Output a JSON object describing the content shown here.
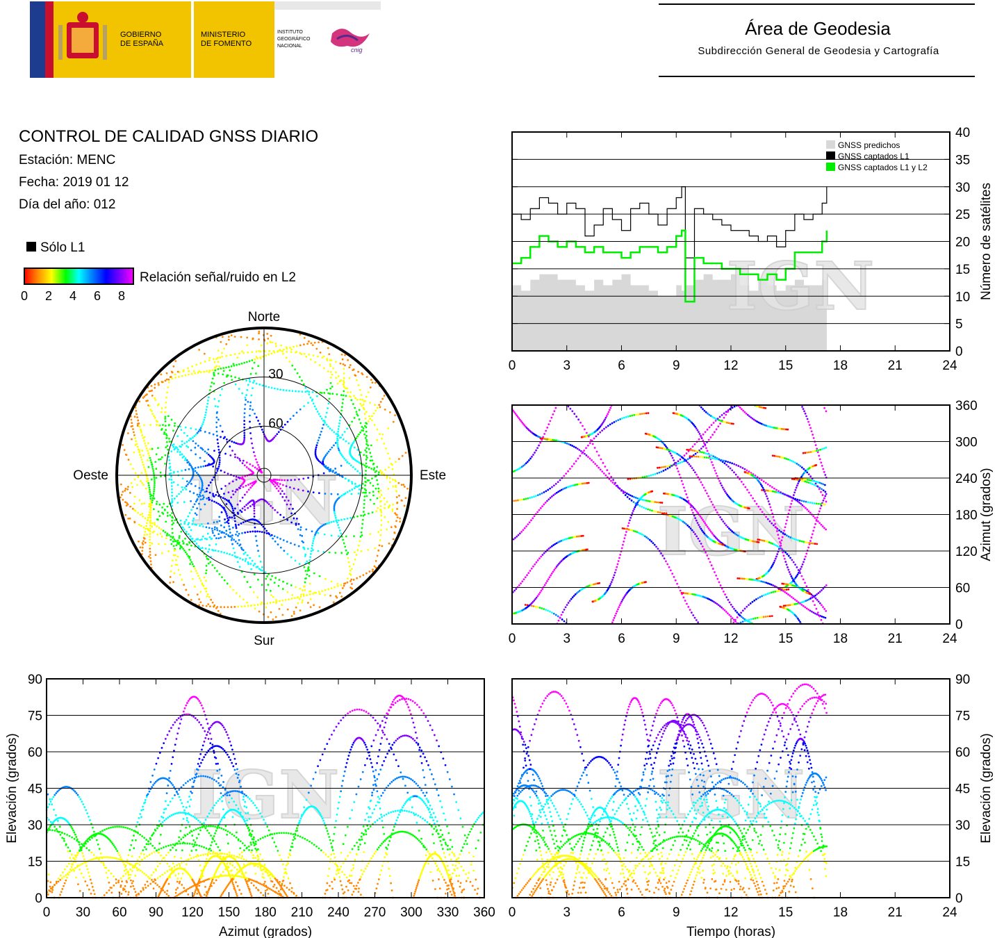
{
  "header": {
    "gov_line1": "GOBIERNO",
    "gov_line2": "DE ESPAÑA",
    "min_line1": "MINISTERIO",
    "min_line2": "DE FOMENTO",
    "ign_line1": "INSTITUTO",
    "ign_line2": "GEOGRÁFICO",
    "ign_line3": "NACIONAL",
    "cnig": "cnig",
    "area_title": "Área de Geodesia",
    "area_subtitle": "Subdirección General de Geodesia y Cartografía"
  },
  "info": {
    "title": "CONTROL DE CALIDAD GNSS DIARIO",
    "station": "Estación: MENC",
    "date": "Fecha: 2019 01 12",
    "doy": "Día del año: 012"
  },
  "legend": {
    "l1_only": "Sólo L1",
    "snr_label": "Relación señal/ruido en L2",
    "snr_ticks": [
      "0",
      "2",
      "4",
      "6",
      "8"
    ],
    "colors": [
      "#ff0000",
      "#ff8800",
      "#ffff00",
      "#00ff00",
      "#00ffff",
      "#0080ff",
      "#0000ff",
      "#8000ff",
      "#ff00ff"
    ]
  },
  "watermark": "IGN",
  "chart_data": [
    {
      "type": "area",
      "name": "satellite_count",
      "xlim": [
        0,
        24
      ],
      "ylim": [
        0,
        40
      ],
      "xticks": [
        "0",
        "3",
        "6",
        "9",
        "12",
        "15",
        "18",
        "21",
        "24"
      ],
      "yticks": [
        "0",
        "5",
        "10",
        "15",
        "20",
        "25",
        "30",
        "35",
        "40"
      ],
      "ylabel": "Número de satélites",
      "legend": [
        "GNSS predichos",
        "GNSS captados L1",
        "GNSS captados L1 y L2"
      ],
      "legend_colors": [
        "#d8d8d8",
        "#000000",
        "#00ee00"
      ],
      "x": [
        0,
        0.5,
        1,
        1.5,
        2,
        2.5,
        3,
        3.5,
        4,
        4.5,
        5,
        5.5,
        6,
        6.5,
        7,
        7.5,
        8,
        8.5,
        9,
        9.3,
        9.5,
        10,
        10.5,
        11,
        11.5,
        12,
        12.5,
        13,
        13.5,
        14,
        14.5,
        15,
        15.5,
        16,
        16.5,
        17,
        17.25
      ],
      "predicted": [
        12,
        11,
        13,
        14,
        14,
        13,
        13,
        12,
        11,
        13,
        12,
        13,
        14,
        12,
        12,
        11,
        10,
        10,
        12,
        11,
        12,
        13,
        14,
        13,
        13,
        14,
        12,
        11,
        13,
        12,
        11,
        12,
        13,
        12,
        12,
        13,
        14
      ],
      "l1": [
        25,
        24,
        26,
        28,
        27,
        25,
        27,
        26,
        21,
        23,
        26,
        24,
        22,
        26,
        27,
        25,
        23,
        26,
        28,
        30,
        17,
        26,
        25,
        24,
        23,
        22,
        22,
        21,
        20,
        21,
        19,
        22,
        25,
        24,
        25,
        27,
        30
      ],
      "l1_l2": [
        16,
        17,
        19,
        21,
        20,
        19,
        20,
        19,
        18,
        19,
        18,
        18,
        17,
        18,
        19,
        19,
        18,
        19,
        21,
        22,
        9,
        17,
        16,
        16,
        15,
        15,
        14,
        14,
        13,
        14,
        13,
        15,
        18,
        18,
        18,
        20,
        22
      ]
    },
    {
      "type": "scatter",
      "name": "azimuth_vs_time",
      "xlim": [
        0,
        24
      ],
      "ylim": [
        0,
        360
      ],
      "xticks": [
        "0",
        "3",
        "6",
        "9",
        "12",
        "15",
        "18",
        "21",
        "24"
      ],
      "yticks": [
        "0",
        "60",
        "120",
        "180",
        "240",
        "300",
        "360"
      ],
      "ylabel": "Azimut (grados)"
    },
    {
      "type": "scatter",
      "name": "skyplot",
      "labels": {
        "north": "Norte",
        "south": "Sur",
        "east": "Este",
        "west": "Oeste"
      },
      "rings": [
        "30",
        "60"
      ]
    },
    {
      "type": "scatter",
      "name": "elevation_vs_azimuth",
      "xlim": [
        0,
        360
      ],
      "ylim": [
        0,
        90
      ],
      "xticks": [
        "0",
        "30",
        "60",
        "90",
        "120",
        "150",
        "180",
        "210",
        "240",
        "270",
        "300",
        "330",
        "360"
      ],
      "yticks": [
        "0",
        "15",
        "30",
        "45",
        "60",
        "75",
        "90"
      ],
      "xlabel": "Azimut (grados)",
      "ylabel": "Elevación (grados)"
    },
    {
      "type": "scatter",
      "name": "elevation_vs_time",
      "xlim": [
        0,
        24
      ],
      "ylim": [
        0,
        90
      ],
      "xticks": [
        "0",
        "3",
        "6",
        "9",
        "12",
        "15",
        "18",
        "21",
        "24"
      ],
      "yticks": [
        "0",
        "15",
        "30",
        "45",
        "60",
        "75",
        "90"
      ],
      "xlabel": "Tiempo (horas)",
      "ylabel": "Elevación (grados)"
    }
  ]
}
